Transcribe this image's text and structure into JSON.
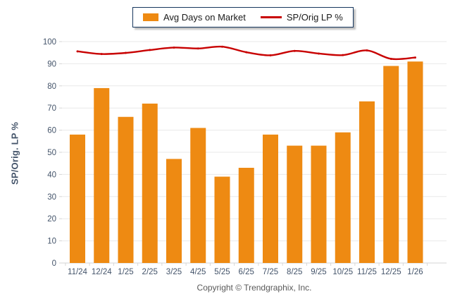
{
  "legend": {
    "items": [
      {
        "label": "Avg Days on Market",
        "type": "bar",
        "color": "#EE8A12"
      },
      {
        "label": "SP/Orig LP %",
        "type": "line",
        "color": "#C80000"
      }
    ]
  },
  "chart_data": {
    "type": "bar+line",
    "categories": [
      "11/24",
      "12/24",
      "1/25",
      "2/25",
      "3/25",
      "4/25",
      "5/25",
      "6/25",
      "7/25",
      "8/25",
      "9/25",
      "10/25",
      "11/25",
      "12/25",
      "1/26"
    ],
    "series": [
      {
        "name": "Avg Days on Market",
        "type": "bar",
        "color": "#EE8A12",
        "values": [
          58,
          79,
          66,
          72,
          47,
          61,
          39,
          43,
          58,
          53,
          53,
          59,
          73,
          89,
          91
        ]
      },
      {
        "name": "SP/Orig LP %",
        "type": "line",
        "color": "#C80000",
        "values": [
          95.6,
          94.4,
          94.9,
          96.2,
          97.3,
          96.9,
          97.7,
          95.2,
          93.8,
          95.8,
          94.6,
          93.9,
          96.0,
          92.2,
          92.8
        ]
      }
    ],
    "title": "",
    "xlabel": "",
    "ylabel": "SP/Orig. LP %",
    "ylim": [
      0,
      100
    ],
    "ytick_step": 10,
    "grid": true,
    "legend_position": "top-center"
  },
  "colors": {
    "grid": "#E9E9E9",
    "axis": "#D6D6D6",
    "tick_text": "#44546A",
    "legend_border": "#17375E",
    "copyright_text": "#595959",
    "background": "#FFFFFF"
  },
  "footer": {
    "copyright": "Copyright © Trendgraphix, Inc."
  }
}
